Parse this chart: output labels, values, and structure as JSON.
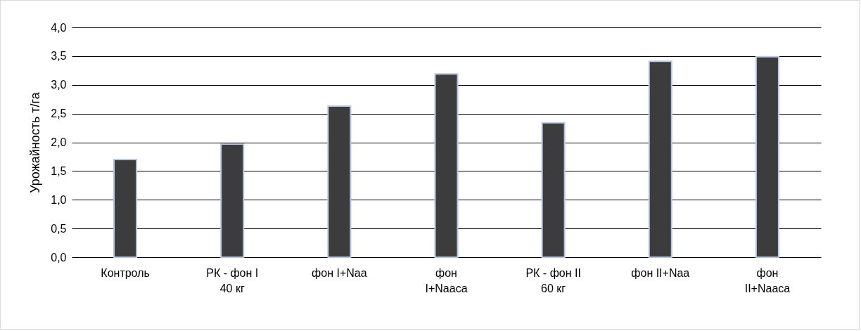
{
  "chart_data": {
    "type": "bar",
    "ylabel": "Урожайность т/га",
    "categories": [
      "Контроль",
      "РК - фон I\n40 кг",
      "фон I+Naa",
      "фон\nI+Naaca",
      "РК - фон II\n60 кг",
      "фон II+Naa",
      "фон\nII+Naaca"
    ],
    "values": [
      1.7,
      1.97,
      2.63,
      3.19,
      2.34,
      3.41,
      3.49
    ],
    "color": "#3c3c3c",
    "ylim": [
      0,
      4
    ],
    "yticks": [
      {
        "value": 0,
        "label": "0,0"
      },
      {
        "value": 0.5,
        "label": "0,5"
      },
      {
        "value": 1,
        "label": "1,0"
      },
      {
        "value": 1.5,
        "label": "1,5"
      },
      {
        "value": 2,
        "label": "2,0"
      },
      {
        "value": 2.5,
        "label": "2,5"
      },
      {
        "value": 3,
        "label": "3,0"
      },
      {
        "value": 3.5,
        "label": "3,5"
      },
      {
        "value": 4,
        "label": "4,0"
      }
    ],
    "grid": "y"
  }
}
